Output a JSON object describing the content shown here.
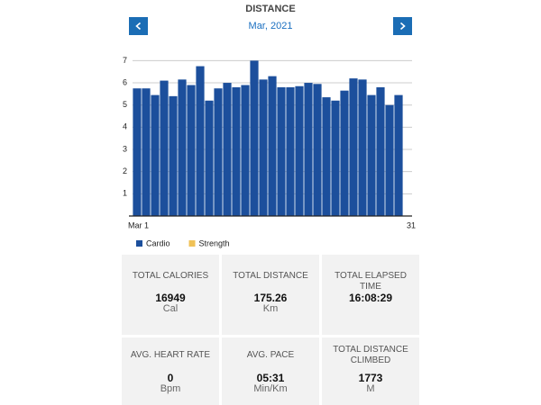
{
  "header": {
    "title": "DISTANCE",
    "period": "Mar, 2021"
  },
  "chart_data": {
    "type": "bar",
    "categories": [
      "Mar 1",
      null,
      null,
      null,
      null,
      null,
      null,
      null,
      null,
      null,
      null,
      null,
      null,
      null,
      null,
      null,
      null,
      null,
      null,
      null,
      null,
      null,
      null,
      null,
      null,
      null,
      null,
      null,
      null,
      null,
      "31"
    ],
    "values": [
      5.75,
      5.75,
      5.45,
      6.1,
      5.4,
      6.15,
      5.9,
      6.75,
      5.2,
      5.75,
      6.0,
      5.8,
      5.9,
      7.0,
      6.15,
      6.3,
      5.8,
      5.8,
      5.85,
      6.0,
      5.95,
      5.35,
      5.2,
      5.65,
      6.2,
      6.15,
      5.45,
      5.8,
      5.0,
      5.45,
      null
    ],
    "color": "#1c4f9c",
    "ylim": [
      0,
      7.3
    ],
    "yticks": [
      1,
      2,
      3,
      4,
      5,
      6,
      7
    ],
    "grid": true,
    "legend": [
      {
        "name": "Cardio",
        "color": "#1c4f9c"
      },
      {
        "name": "Strength",
        "color": "#f0c257"
      }
    ]
  },
  "stats": [
    {
      "label": "TOTAL CALORIES",
      "value": "16949",
      "unit": "Cal"
    },
    {
      "label": "TOTAL DISTANCE",
      "value": "175.26",
      "unit": "Km"
    },
    {
      "label": "TOTAL ELAPSED TIME",
      "value": "16:08:29"
    },
    {
      "label": "AVG. HEART RATE",
      "value": "0",
      "unit": "Bpm"
    },
    {
      "label": "AVG. PACE",
      "value": "05:31",
      "unit": "Min/Km"
    },
    {
      "label": "TOTAL DISTANCE CLIMBED",
      "value": "1773",
      "unit": "M"
    }
  ]
}
